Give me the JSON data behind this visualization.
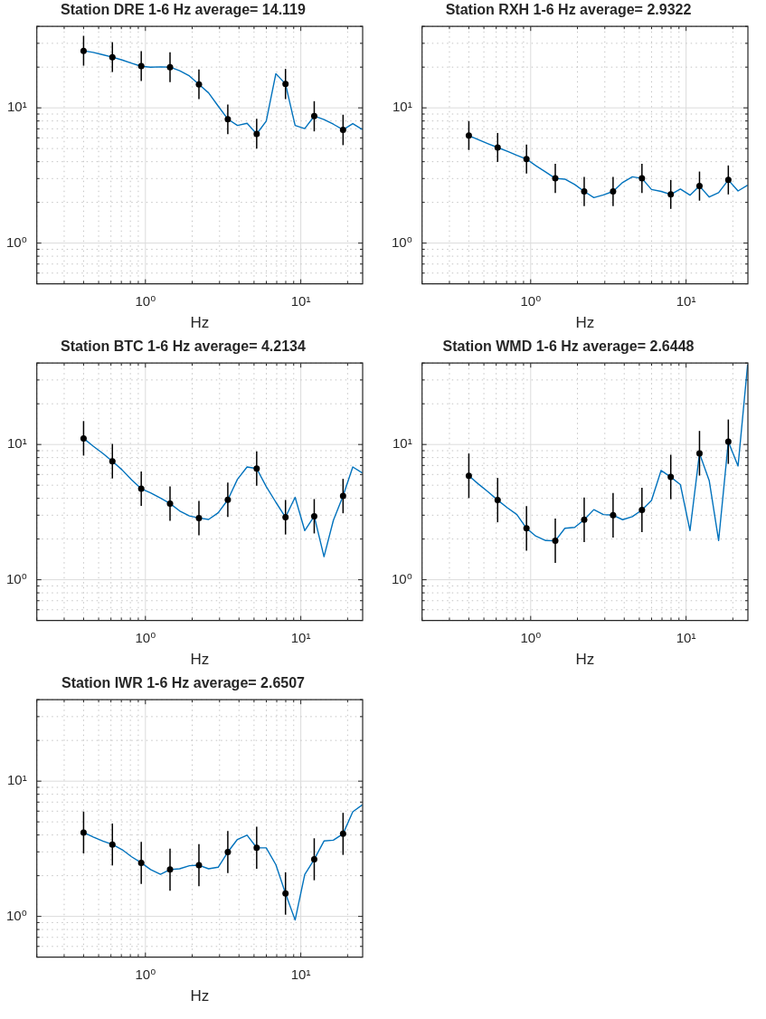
{
  "chart_data": [
    {
      "type": "line",
      "title": "Station DRE 1-6 Hz average= 14.119",
      "xlabel": "Hz",
      "log": "xy",
      "grid": true,
      "xlim": [
        0.2,
        25
      ],
      "ylim": [
        0.5,
        40
      ],
      "xticks": [
        {
          "value": 0.2,
          "label": null
        },
        {
          "value": 0.3,
          "label": null
        },
        {
          "value": 0.4,
          "label": null
        },
        {
          "value": 0.5,
          "label": null
        },
        {
          "value": 0.6,
          "label": null
        },
        {
          "value": 0.7,
          "label": null
        },
        {
          "value": 0.8,
          "label": null
        },
        {
          "value": 0.9,
          "label": null
        },
        {
          "value": 1,
          "label": "10⁰"
        },
        {
          "value": 2,
          "label": null
        },
        {
          "value": 3,
          "label": null
        },
        {
          "value": 4,
          "label": null
        },
        {
          "value": 5,
          "label": null
        },
        {
          "value": 6,
          "label": null
        },
        {
          "value": 7,
          "label": null
        },
        {
          "value": 8,
          "label": null
        },
        {
          "value": 9,
          "label": null
        },
        {
          "value": 10,
          "label": "10¹"
        },
        {
          "value": 20,
          "label": null
        }
      ],
      "yticks": [
        {
          "value": 0.5,
          "label": null
        },
        {
          "value": 0.6,
          "label": null
        },
        {
          "value": 0.7,
          "label": null
        },
        {
          "value": 0.8,
          "label": null
        },
        {
          "value": 0.9,
          "label": null
        },
        {
          "value": 1,
          "label": "10⁰"
        },
        {
          "value": 2,
          "label": null
        },
        {
          "value": 3,
          "label": null
        },
        {
          "value": 4,
          "label": null
        },
        {
          "value": 5,
          "label": null
        },
        {
          "value": 6,
          "label": null
        },
        {
          "value": 7,
          "label": null
        },
        {
          "value": 8,
          "label": null
        },
        {
          "value": 9,
          "label": null
        },
        {
          "value": 10,
          "label": "10¹"
        },
        {
          "value": 20,
          "label": null
        },
        {
          "value": 30,
          "label": null
        },
        {
          "value": 40,
          "label": null
        }
      ],
      "series": [
        {
          "type": "line",
          "color": "#0072bd",
          "x": [
            0.4,
            0.461,
            0.532,
            0.613,
            0.707,
            0.815,
            0.94,
            1.08,
            1.25,
            1.44,
            1.66,
            1.92,
            2.21,
            2.55,
            2.94,
            3.39,
            3.91,
            4.51,
            5.2,
            5.99,
            6.91,
            7.97,
            9.19,
            10.6,
            12.2,
            14.1,
            16.2,
            18.7,
            21.6,
            24.9
          ],
          "values": [
            26.4,
            25.7,
            24.7,
            23.7,
            22.6,
            21.4,
            20.3,
            20.0,
            20.1,
            20.0,
            18.8,
            17.2,
            14.9,
            12.9,
            10.3,
            8.25,
            7.41,
            7.69,
            6.41,
            7.98,
            17.9,
            15.0,
            7.41,
            7.02,
            8.7,
            8.2,
            7.57,
            6.88,
            7.65,
            6.92
          ]
        },
        {
          "type": "scatter",
          "marker": "circle",
          "color": "#000000",
          "x": [
            0.4,
            0.613,
            0.94,
            1.44,
            2.21,
            3.39,
            5.2,
            7.97,
            12.2,
            18.7
          ],
          "values": [
            26.4,
            23.7,
            20.4,
            20.0,
            14.9,
            8.25,
            6.41,
            15.0,
            8.7,
            6.88
          ],
          "errors": [
            [
              20.5,
              34.1
            ],
            [
              18.4,
              30.6
            ],
            [
              15.8,
              26.3
            ],
            [
              15.5,
              25.8
            ],
            [
              11.6,
              19.2
            ],
            [
              6.4,
              10.6
            ],
            [
              5.0,
              8.3
            ],
            [
              11.6,
              19.4
            ],
            [
              6.7,
              11.2
            ],
            [
              5.3,
              8.9
            ]
          ]
        }
      ]
    },
    {
      "type": "line",
      "title": "Station RXH 1-6 Hz average= 2.9322",
      "xlabel": "Hz",
      "log": "xy",
      "grid": true,
      "xlim": [
        0.2,
        25
      ],
      "ylim": [
        0.5,
        40
      ],
      "xticks": [
        {
          "value": 0.2,
          "label": null
        },
        {
          "value": 0.3,
          "label": null
        },
        {
          "value": 0.4,
          "label": null
        },
        {
          "value": 0.5,
          "label": null
        },
        {
          "value": 0.6,
          "label": null
        },
        {
          "value": 0.7,
          "label": null
        },
        {
          "value": 0.8,
          "label": null
        },
        {
          "value": 0.9,
          "label": null
        },
        {
          "value": 1,
          "label": "10⁰"
        },
        {
          "value": 2,
          "label": null
        },
        {
          "value": 3,
          "label": null
        },
        {
          "value": 4,
          "label": null
        },
        {
          "value": 5,
          "label": null
        },
        {
          "value": 6,
          "label": null
        },
        {
          "value": 7,
          "label": null
        },
        {
          "value": 8,
          "label": null
        },
        {
          "value": 9,
          "label": null
        },
        {
          "value": 10,
          "label": "10¹"
        },
        {
          "value": 20,
          "label": null
        }
      ],
      "yticks": [
        {
          "value": 0.5,
          "label": null
        },
        {
          "value": 0.6,
          "label": null
        },
        {
          "value": 0.7,
          "label": null
        },
        {
          "value": 0.8,
          "label": null
        },
        {
          "value": 0.9,
          "label": null
        },
        {
          "value": 1,
          "label": "10⁰"
        },
        {
          "value": 2,
          "label": null
        },
        {
          "value": 3,
          "label": null
        },
        {
          "value": 4,
          "label": null
        },
        {
          "value": 5,
          "label": null
        },
        {
          "value": 6,
          "label": null
        },
        {
          "value": 7,
          "label": null
        },
        {
          "value": 8,
          "label": null
        },
        {
          "value": 9,
          "label": null
        },
        {
          "value": 10,
          "label": "10¹"
        },
        {
          "value": 20,
          "label": null
        },
        {
          "value": 30,
          "label": null
        },
        {
          "value": 40,
          "label": null
        }
      ],
      "series": [
        {
          "type": "line",
          "color": "#0072bd",
          "x": [
            0.4,
            0.461,
            0.532,
            0.613,
            0.707,
            0.815,
            0.94,
            1.08,
            1.25,
            1.44,
            1.66,
            1.92,
            2.21,
            2.55,
            2.94,
            3.39,
            3.91,
            4.51,
            5.2,
            5.99,
            6.91,
            7.97,
            9.19,
            10.6,
            12.2,
            14.1,
            16.2,
            18.7,
            21.6,
            24.9
          ],
          "values": [
            6.24,
            5.82,
            5.43,
            5.09,
            4.78,
            4.46,
            4.18,
            3.73,
            3.35,
            3.01,
            2.97,
            2.71,
            2.41,
            2.17,
            2.27,
            2.41,
            2.81,
            3.09,
            3.01,
            2.49,
            2.41,
            2.29,
            2.51,
            2.26,
            2.64,
            2.19,
            2.36,
            2.93,
            2.43,
            2.68
          ]
        },
        {
          "type": "scatter",
          "marker": "circle",
          "color": "#000000",
          "x": [
            0.4,
            0.613,
            0.94,
            1.44,
            2.21,
            3.39,
            5.2,
            7.97,
            12.2,
            18.7
          ],
          "values": [
            6.24,
            5.09,
            4.18,
            3.01,
            2.41,
            2.41,
            3.01,
            2.29,
            2.64,
            2.93
          ],
          "errors": [
            [
              4.88,
              7.99
            ],
            [
              3.98,
              6.52
            ],
            [
              3.27,
              5.35
            ],
            [
              2.35,
              3.85
            ],
            [
              1.88,
              3.08
            ],
            [
              1.88,
              3.08
            ],
            [
              2.35,
              3.85
            ],
            [
              1.79,
              2.93
            ],
            [
              2.06,
              3.38
            ],
            [
              2.29,
              3.75
            ]
          ]
        }
      ]
    },
    {
      "type": "line",
      "title": "Station BTC 1-6 Hz average= 4.2134",
      "xlabel": "Hz",
      "log": "xy",
      "grid": true,
      "xlim": [
        0.2,
        25
      ],
      "ylim": [
        0.5,
        40
      ],
      "xticks": [
        {
          "value": 0.2,
          "label": null
        },
        {
          "value": 0.3,
          "label": null
        },
        {
          "value": 0.4,
          "label": null
        },
        {
          "value": 0.5,
          "label": null
        },
        {
          "value": 0.6,
          "label": null
        },
        {
          "value": 0.7,
          "label": null
        },
        {
          "value": 0.8,
          "label": null
        },
        {
          "value": 0.9,
          "label": null
        },
        {
          "value": 1,
          "label": "10⁰"
        },
        {
          "value": 2,
          "label": null
        },
        {
          "value": 3,
          "label": null
        },
        {
          "value": 4,
          "label": null
        },
        {
          "value": 5,
          "label": null
        },
        {
          "value": 6,
          "label": null
        },
        {
          "value": 7,
          "label": null
        },
        {
          "value": 8,
          "label": null
        },
        {
          "value": 9,
          "label": null
        },
        {
          "value": 10,
          "label": "10¹"
        },
        {
          "value": 20,
          "label": null
        }
      ],
      "yticks": [
        {
          "value": 0.5,
          "label": null
        },
        {
          "value": 0.6,
          "label": null
        },
        {
          "value": 0.7,
          "label": null
        },
        {
          "value": 0.8,
          "label": null
        },
        {
          "value": 0.9,
          "label": null
        },
        {
          "value": 1,
          "label": "10⁰"
        },
        {
          "value": 2,
          "label": null
        },
        {
          "value": 3,
          "label": null
        },
        {
          "value": 4,
          "label": null
        },
        {
          "value": 5,
          "label": null
        },
        {
          "value": 6,
          "label": null
        },
        {
          "value": 7,
          "label": null
        },
        {
          "value": 8,
          "label": null
        },
        {
          "value": 9,
          "label": null
        },
        {
          "value": 10,
          "label": "10¹"
        },
        {
          "value": 20,
          "label": null
        },
        {
          "value": 30,
          "label": null
        },
        {
          "value": 40,
          "label": null
        }
      ],
      "series": [
        {
          "type": "line",
          "color": "#0072bd",
          "x": [
            0.4,
            0.461,
            0.532,
            0.613,
            0.707,
            0.815,
            0.94,
            1.08,
            1.25,
            1.44,
            1.66,
            1.92,
            2.21,
            2.55,
            2.94,
            3.39,
            3.91,
            4.51,
            5.2,
            5.99,
            6.91,
            7.97,
            9.19,
            10.6,
            12.2,
            14.1,
            16.2,
            18.7,
            21.6,
            24.9
          ],
          "values": [
            11.1,
            9.73,
            8.6,
            7.52,
            6.5,
            5.47,
            4.71,
            4.39,
            4.01,
            3.66,
            3.23,
            2.96,
            2.86,
            2.79,
            3.13,
            3.9,
            5.53,
            6.82,
            6.64,
            4.89,
            3.74,
            2.9,
            4.07,
            2.31,
            2.95,
            1.48,
            2.75,
            4.16,
            6.82,
            6.16
          ]
        },
        {
          "type": "scatter",
          "marker": "circle",
          "color": "#000000",
          "x": [
            0.4,
            0.613,
            0.94,
            1.44,
            2.21,
            3.39,
            5.2,
            7.97,
            12.2,
            18.7
          ],
          "values": [
            11.1,
            7.52,
            4.71,
            3.66,
            2.86,
            3.9,
            6.64,
            2.9,
            2.95,
            4.16
          ],
          "errors": [
            [
              8.28,
              14.9
            ],
            [
              5.61,
              10.1
            ],
            [
              3.51,
              6.31
            ],
            [
              2.73,
              4.9
            ],
            [
              2.13,
              3.83
            ],
            [
              2.91,
              5.23
            ],
            [
              4.96,
              8.9
            ],
            [
              2.16,
              3.89
            ],
            [
              2.2,
              3.95
            ],
            [
              3.1,
              5.57
            ]
          ]
        }
      ]
    },
    {
      "type": "line",
      "title": "Station WMD 1-6 Hz average= 2.6448",
      "xlabel": "Hz",
      "log": "xy",
      "grid": true,
      "xlim": [
        0.2,
        25
      ],
      "ylim": [
        0.5,
        40
      ],
      "xticks": [
        {
          "value": 0.2,
          "label": null
        },
        {
          "value": 0.3,
          "label": null
        },
        {
          "value": 0.4,
          "label": null
        },
        {
          "value": 0.5,
          "label": null
        },
        {
          "value": 0.6,
          "label": null
        },
        {
          "value": 0.7,
          "label": null
        },
        {
          "value": 0.8,
          "label": null
        },
        {
          "value": 0.9,
          "label": null
        },
        {
          "value": 1,
          "label": "10⁰"
        },
        {
          "value": 2,
          "label": null
        },
        {
          "value": 3,
          "label": null
        },
        {
          "value": 4,
          "label": null
        },
        {
          "value": 5,
          "label": null
        },
        {
          "value": 6,
          "label": null
        },
        {
          "value": 7,
          "label": null
        },
        {
          "value": 8,
          "label": null
        },
        {
          "value": 9,
          "label": null
        },
        {
          "value": 10,
          "label": "10¹"
        },
        {
          "value": 20,
          "label": null
        }
      ],
      "yticks": [
        {
          "value": 0.5,
          "label": null
        },
        {
          "value": 0.6,
          "label": null
        },
        {
          "value": 0.7,
          "label": null
        },
        {
          "value": 0.8,
          "label": null
        },
        {
          "value": 0.9,
          "label": null
        },
        {
          "value": 1,
          "label": "10⁰"
        },
        {
          "value": 2,
          "label": null
        },
        {
          "value": 3,
          "label": null
        },
        {
          "value": 4,
          "label": null
        },
        {
          "value": 5,
          "label": null
        },
        {
          "value": 6,
          "label": null
        },
        {
          "value": 7,
          "label": null
        },
        {
          "value": 8,
          "label": null
        },
        {
          "value": 9,
          "label": null
        },
        {
          "value": 10,
          "label": "10¹"
        },
        {
          "value": 20,
          "label": null
        },
        {
          "value": 30,
          "label": null
        },
        {
          "value": 40,
          "label": null
        }
      ],
      "series": [
        {
          "type": "line",
          "color": "#0072bd",
          "x": [
            0.4,
            0.461,
            0.532,
            0.613,
            0.707,
            0.815,
            0.94,
            1.08,
            1.25,
            1.44,
            1.66,
            1.92,
            2.21,
            2.55,
            2.94,
            3.39,
            3.91,
            4.51,
            5.2,
            5.99,
            6.91,
            7.97,
            9.19,
            10.6,
            12.2,
            14.1,
            16.2,
            18.7,
            21.6,
            24.9
          ],
          "values": [
            5.87,
            5.1,
            4.46,
            3.88,
            3.41,
            3.03,
            2.4,
            2.1,
            1.95,
            1.94,
            2.4,
            2.44,
            2.78,
            3.3,
            3.03,
            3.0,
            2.78,
            2.93,
            3.28,
            3.86,
            6.43,
            5.75,
            5.05,
            2.31,
            8.6,
            5.39,
            1.95,
            10.5,
            6.93,
            39
          ]
        },
        {
          "type": "scatter",
          "marker": "circle",
          "color": "#000000",
          "x": [
            0.4,
            0.613,
            0.94,
            1.44,
            2.21,
            3.39,
            5.2,
            7.97,
            12.2,
            18.7
          ],
          "values": [
            5.87,
            3.88,
            2.4,
            1.94,
            2.78,
            3.0,
            3.28,
            5.75,
            8.6,
            10.5
          ],
          "errors": [
            [
              4.02,
              8.57
            ],
            [
              2.66,
              5.66
            ],
            [
              1.64,
              3.5
            ],
            [
              1.33,
              2.83
            ],
            [
              1.9,
              4.06
            ],
            [
              2.05,
              4.38
            ],
            [
              2.25,
              4.79
            ],
            [
              3.94,
              8.4
            ],
            [
              5.89,
              12.6
            ],
            [
              7.19,
              15.3
            ]
          ]
        }
      ]
    },
    {
      "type": "line",
      "title": "Station IWR 1-6 Hz average= 2.6507",
      "xlabel": "Hz",
      "log": "xy",
      "grid": true,
      "xlim": [
        0.2,
        25
      ],
      "ylim": [
        0.5,
        40
      ],
      "xticks": [
        {
          "value": 0.2,
          "label": null
        },
        {
          "value": 0.3,
          "label": null
        },
        {
          "value": 0.4,
          "label": null
        },
        {
          "value": 0.5,
          "label": null
        },
        {
          "value": 0.6,
          "label": null
        },
        {
          "value": 0.7,
          "label": null
        },
        {
          "value": 0.8,
          "label": null
        },
        {
          "value": 0.9,
          "label": null
        },
        {
          "value": 1,
          "label": "10⁰"
        },
        {
          "value": 2,
          "label": null
        },
        {
          "value": 3,
          "label": null
        },
        {
          "value": 4,
          "label": null
        },
        {
          "value": 5,
          "label": null
        },
        {
          "value": 6,
          "label": null
        },
        {
          "value": 7,
          "label": null
        },
        {
          "value": 8,
          "label": null
        },
        {
          "value": 9,
          "label": null
        },
        {
          "value": 10,
          "label": "10¹"
        },
        {
          "value": 20,
          "label": null
        }
      ],
      "yticks": [
        {
          "value": 0.5,
          "label": null
        },
        {
          "value": 0.6,
          "label": null
        },
        {
          "value": 0.7,
          "label": null
        },
        {
          "value": 0.8,
          "label": null
        },
        {
          "value": 0.9,
          "label": null
        },
        {
          "value": 1,
          "label": "10⁰"
        },
        {
          "value": 2,
          "label": null
        },
        {
          "value": 3,
          "label": null
        },
        {
          "value": 4,
          "label": null
        },
        {
          "value": 5,
          "label": null
        },
        {
          "value": 6,
          "label": null
        },
        {
          "value": 7,
          "label": null
        },
        {
          "value": 8,
          "label": null
        },
        {
          "value": 9,
          "label": null
        },
        {
          "value": 10,
          "label": "10¹"
        },
        {
          "value": 20,
          "label": null
        },
        {
          "value": 30,
          "label": null
        },
        {
          "value": 40,
          "label": null
        }
      ],
      "series": [
        {
          "type": "line",
          "color": "#0072bd",
          "x": [
            0.4,
            0.461,
            0.532,
            0.613,
            0.707,
            0.815,
            0.94,
            1.08,
            1.25,
            1.44,
            1.66,
            1.92,
            2.21,
            2.55,
            2.94,
            3.39,
            3.91,
            4.51,
            5.2,
            5.99,
            6.91,
            7.97,
            9.19,
            10.6,
            12.2,
            14.1,
            16.2,
            18.7,
            21.6,
            24.9
          ],
          "values": [
            4.17,
            3.87,
            3.61,
            3.4,
            3.12,
            2.76,
            2.49,
            2.22,
            2.05,
            2.22,
            2.25,
            2.37,
            2.39,
            2.25,
            2.31,
            2.99,
            3.71,
            3.99,
            3.22,
            3.21,
            2.41,
            1.48,
            0.94,
            2.04,
            2.64,
            3.61,
            3.66,
            4.08,
            5.94,
            6.68
          ]
        },
        {
          "type": "scatter",
          "marker": "circle",
          "color": "#000000",
          "x": [
            0.4,
            0.613,
            0.94,
            1.44,
            2.21,
            3.39,
            5.2,
            7.97,
            12.2,
            18.7
          ],
          "values": [
            4.17,
            3.4,
            2.49,
            2.22,
            2.39,
            2.99,
            3.22,
            1.48,
            2.64,
            4.08
          ],
          "errors": [
            [
              2.92,
              5.96
            ],
            [
              2.38,
              4.86
            ],
            [
              1.74,
              3.56
            ],
            [
              1.55,
              3.17
            ],
            [
              1.67,
              3.42
            ],
            [
              2.09,
              4.28
            ],
            [
              2.25,
              4.6
            ],
            [
              1.03,
              2.12
            ],
            [
              1.85,
              3.78
            ],
            [
              2.85,
              5.83
            ]
          ]
        }
      ]
    }
  ]
}
